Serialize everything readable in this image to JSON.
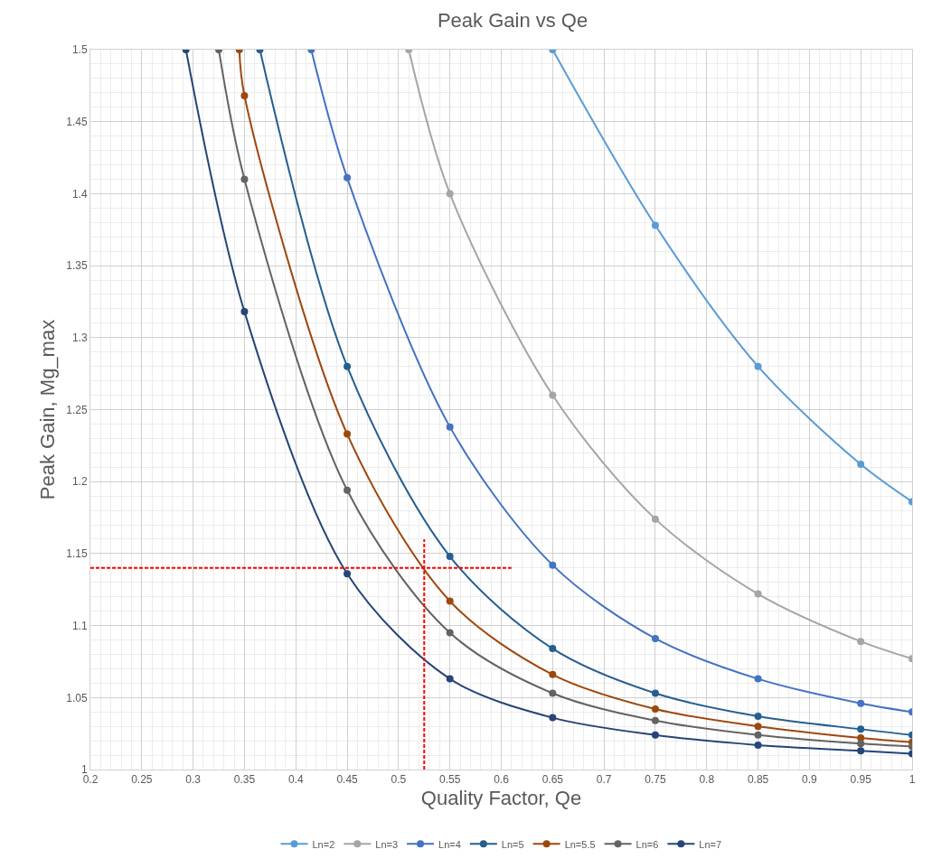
{
  "chart_data": {
    "type": "line",
    "title": "Peak Gain vs Qe",
    "xlabel": "Quality Factor, Qe",
    "ylabel": "Peak Gain, Mg_max",
    "xlim": [
      0.2,
      1
    ],
    "xticks": [
      0.2,
      0.25,
      0.3,
      0.35,
      0.4,
      0.45,
      0.5,
      0.55,
      0.6,
      0.65,
      0.7,
      0.75,
      0.8,
      0.85,
      0.9,
      0.95,
      1
    ],
    "ylim": [
      1,
      1.5
    ],
    "yticks": [
      1,
      1.05,
      1.1,
      1.15,
      1.2,
      1.25,
      1.3,
      1.35,
      1.4,
      1.45,
      1.5
    ],
    "grid": true,
    "legend": "bottom",
    "marker": "circle",
    "line_style": "solid",
    "series": [
      {
        "name": "Ln=2",
        "color": "#5b9bd5",
        "x": [
          0.65,
          0.75,
          0.85,
          0.95,
          1
        ],
        "values": [
          1.5,
          1.378,
          1.28,
          1.212,
          1.186
        ]
      },
      {
        "name": "Ln=3",
        "color": "#a5a5a5",
        "x": [
          0.51,
          0.55,
          0.65,
          0.75,
          0.85,
          0.95,
          1
        ],
        "values": [
          1.5,
          1.4,
          1.26,
          1.174,
          1.122,
          1.089,
          1.077
        ]
      },
      {
        "name": "Ln=4",
        "color": "#4472c4",
        "x": [
          0.415,
          0.45,
          0.55,
          0.65,
          0.75,
          0.85,
          0.95,
          1
        ],
        "values": [
          1.5,
          1.411,
          1.238,
          1.142,
          1.091,
          1.063,
          1.046,
          1.04
        ]
      },
      {
        "name": "Ln=5",
        "color": "#255e91",
        "x": [
          0.365,
          0.45,
          0.55,
          0.65,
          0.75,
          0.85,
          0.95,
          1
        ],
        "values": [
          1.5,
          1.28,
          1.148,
          1.084,
          1.053,
          1.037,
          1.028,
          1.024
        ]
      },
      {
        "name": "Ln=5.5",
        "color": "#9e480e",
        "x": [
          0.345,
          0.35,
          0.45,
          0.55,
          0.65,
          0.75,
          0.85,
          0.95,
          1
        ],
        "values": [
          1.5,
          1.468,
          1.233,
          1.117,
          1.066,
          1.042,
          1.03,
          1.022,
          1.019
        ]
      },
      {
        "name": "Ln=6",
        "color": "#636363",
        "x": [
          0.325,
          0.35,
          0.45,
          0.55,
          0.65,
          0.75,
          0.85,
          0.95,
          1
        ],
        "values": [
          1.5,
          1.41,
          1.194,
          1.095,
          1.053,
          1.034,
          1.024,
          1.018,
          1.016
        ]
      },
      {
        "name": "Ln=7",
        "color": "#264478",
        "x": [
          0.293,
          0.35,
          0.45,
          0.55,
          0.65,
          0.75,
          0.85,
          0.95,
          1
        ],
        "values": [
          1.5,
          1.318,
          1.136,
          1.063,
          1.036,
          1.024,
          1.017,
          1.013,
          1.011
        ]
      },
      {
        "color": "#ff0000",
        "marker": "none",
        "line_style": "dashed",
        "x": [
          0.2,
          0.61
        ],
        "values": [
          1.14,
          1.14
        ]
      },
      {
        "color": "#ff0000",
        "marker": "none",
        "line_style": "dashed",
        "x": [
          0.525,
          0.525
        ],
        "values": [
          1,
          1.16
        ]
      }
    ]
  }
}
